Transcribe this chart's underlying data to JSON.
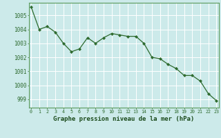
{
  "x": [
    0,
    1,
    2,
    3,
    4,
    5,
    6,
    7,
    8,
    9,
    10,
    11,
    12,
    13,
    14,
    15,
    16,
    17,
    18,
    19,
    20,
    21,
    22,
    23
  ],
  "y": [
    1005.6,
    1004.0,
    1004.2,
    1003.8,
    1003.0,
    1002.4,
    1002.6,
    1003.4,
    1003.0,
    1003.4,
    1003.7,
    1003.6,
    1003.5,
    1003.5,
    1003.0,
    1002.0,
    1001.9,
    1001.5,
    1001.2,
    1000.7,
    1000.7,
    1000.3,
    999.4,
    998.9
  ],
  "ylabel_ticks": [
    999,
    1000,
    1001,
    1002,
    1003,
    1004,
    1005
  ],
  "xlabel_ticks": [
    0,
    1,
    2,
    3,
    4,
    5,
    6,
    7,
    8,
    9,
    10,
    11,
    12,
    13,
    14,
    15,
    16,
    17,
    18,
    19,
    20,
    21,
    22,
    23
  ],
  "ylim": [
    998.4,
    1005.9
  ],
  "xlim": [
    -0.3,
    23.3
  ],
  "line_color": "#2d6a2d",
  "marker_color": "#2d6a2d",
  "bg_color": "#cceaea",
  "grid_color": "#ffffff",
  "xlabel": "Graphe pression niveau de la mer (hPa)",
  "xlabel_color": "#1a4a1a",
  "tick_color": "#2d6a2d",
  "border_color": "#5a9a5a"
}
